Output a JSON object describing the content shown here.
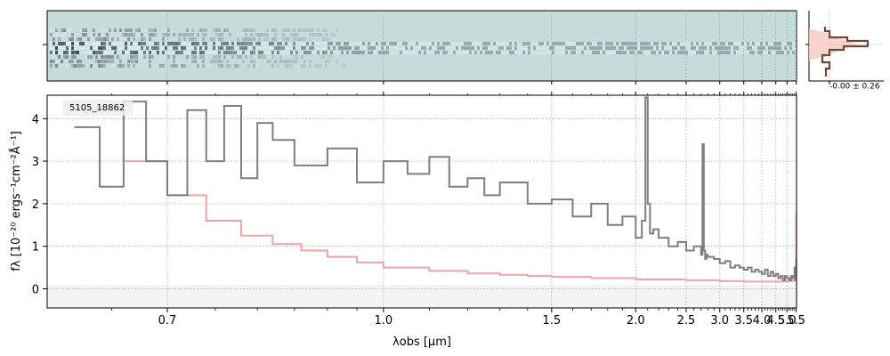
{
  "chart_data": {
    "type": "line",
    "object_id": "5105_18862",
    "xlabel": "λobs [μm]",
    "ylabel": "fλ [10⁻²⁰ ergs⁻¹cm⁻²Å⁻¹]",
    "x_scale": "reciprocal",
    "xlim": [
      0.6,
      5.52
    ],
    "ylim": [
      -0.45,
      4.55
    ],
    "x_ticks": [
      0.7,
      1.0,
      1.5,
      2.0,
      2.5,
      3.0,
      3.5,
      4.0,
      4.5,
      5.0,
      5.5
    ],
    "x_tick_labels": [
      "0.7",
      "1.0",
      "1.5",
      "2.0",
      "2.5",
      "3.0",
      "3.5",
      "4.0",
      "4.5",
      "5.0",
      "5.5"
    ],
    "y_ticks": [
      0,
      1,
      2,
      3,
      4
    ],
    "y_tick_labels": [
      "0",
      "1",
      "2",
      "3",
      "4"
    ],
    "grid": true,
    "colors": {
      "flux": "#7f7f7f",
      "model": "#f4a3a3",
      "spec2d_bg": "#c5dcdb",
      "spec2d_trace": "#2a3550",
      "hist_line": "#6b4a3a",
      "hist_fill": "#f6c9c0"
    },
    "series": [
      {
        "x": [
          0.62,
          0.64,
          0.66,
          0.68,
          0.7,
          0.72,
          0.74,
          0.76,
          0.78,
          0.8,
          0.82,
          0.85,
          0.9,
          0.95,
          1.0,
          1.05,
          1.1,
          1.15,
          1.2,
          1.25,
          1.3,
          1.4,
          1.5,
          1.6,
          1.7,
          1.8,
          1.9,
          2.0,
          2.05,
          2.08,
          2.1,
          2.12,
          2.15,
          2.2,
          2.3,
          2.4,
          2.5,
          2.6,
          2.7,
          2.72,
          2.74,
          2.76,
          2.78,
          2.8,
          2.9,
          3.0,
          3.1,
          3.2,
          3.3,
          3.4,
          3.5,
          3.6,
          3.7,
          3.8,
          3.9,
          4.0,
          4.1,
          4.2,
          4.3,
          4.4,
          4.5,
          4.6,
          4.7,
          4.8,
          4.9,
          5.0,
          5.1,
          5.2,
          5.3,
          5.4,
          5.45,
          5.5
        ],
        "y": [
          3.8,
          2.4,
          4.4,
          3.0,
          2.2,
          4.2,
          3.0,
          4.3,
          2.6,
          3.9,
          3.5,
          2.9,
          3.3,
          2.5,
          3.0,
          2.7,
          3.1,
          2.4,
          2.6,
          2.2,
          2.5,
          2.0,
          2.1,
          1.7,
          2.0,
          1.5,
          1.7,
          1.2,
          1.6,
          4.5,
          2.0,
          1.3,
          1.4,
          1.2,
          1.0,
          1.1,
          0.9,
          1.0,
          0.8,
          3.4,
          0.9,
          0.7,
          0.8,
          0.75,
          0.7,
          0.6,
          0.65,
          0.5,
          0.55,
          0.5,
          0.45,
          0.5,
          0.4,
          0.45,
          0.4,
          0.35,
          0.45,
          0.3,
          0.4,
          0.3,
          0.35,
          0.25,
          0.3,
          0.2,
          0.3,
          0.25,
          0.2,
          0.3,
          0.25,
          0.5,
          0.2,
          0.7
        ]
      },
      {
        "x": [
          0.62,
          0.66,
          0.7,
          0.74,
          0.78,
          0.82,
          0.86,
          0.9,
          0.95,
          1.0,
          1.1,
          1.2,
          1.3,
          1.4,
          1.5,
          1.7,
          2.0,
          2.5,
          3.0,
          3.5,
          4.0,
          4.5,
          5.0,
          5.3,
          5.45,
          5.5
        ],
        "y": [
          4.2,
          3.0,
          2.2,
          1.6,
          1.25,
          1.05,
          0.9,
          0.75,
          0.62,
          0.5,
          0.42,
          0.36,
          0.33,
          0.3,
          0.28,
          0.25,
          0.22,
          0.2,
          0.18,
          0.17,
          0.17,
          0.17,
          0.18,
          0.2,
          0.3,
          1.8
        ]
      }
    ],
    "hist": {
      "text": "-0.00 ± 0.26"
    }
  }
}
